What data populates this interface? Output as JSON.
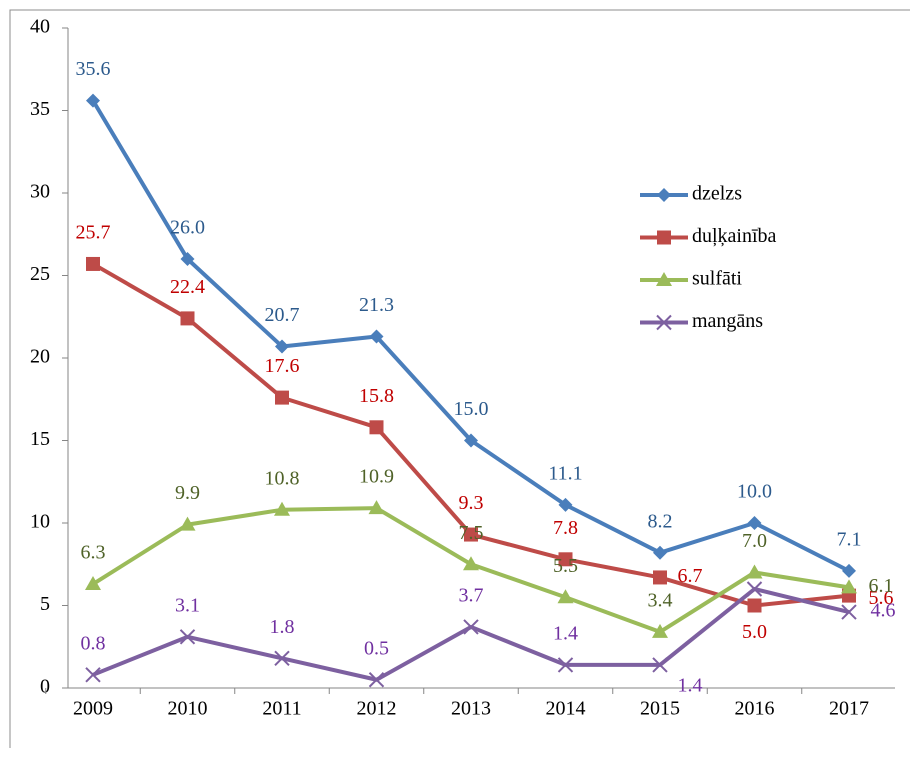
{
  "chart_data": {
    "type": "line",
    "categories": [
      "2009",
      "2010",
      "2011",
      "2012",
      "2013",
      "2014",
      "2015",
      "2016",
      "2017"
    ],
    "series": [
      {
        "name": "dzelzs",
        "color": "#4a7ebb",
        "label_color": "#2c5a8c",
        "marker": "diamond",
        "values": [
          35.6,
          26.0,
          20.7,
          21.3,
          15.0,
          11.1,
          8.2,
          10.0,
          7.1
        ],
        "value_labels": [
          "35.6",
          "26.0",
          "20.7",
          "21.3",
          "15.0",
          "11.1",
          "8.2",
          "10.0",
          "7.1"
        ]
      },
      {
        "name": "duļķainība",
        "color": "#be4b48",
        "label_color": "#c00000",
        "marker": "square",
        "values": [
          25.7,
          22.4,
          17.6,
          15.8,
          9.3,
          7.8,
          6.7,
          5.0,
          5.6
        ],
        "value_labels": [
          "25.7",
          "22.4",
          "17.6",
          "15.8",
          "9.3",
          "7.8",
          "6.7",
          "5.0",
          "5.6"
        ]
      },
      {
        "name": "sulfāti",
        "color": "#9bbb59",
        "label_color": "#4f6228",
        "marker": "triangle",
        "values": [
          6.3,
          9.9,
          10.8,
          10.9,
          7.5,
          5.5,
          3.4,
          7.0,
          6.1
        ],
        "value_labels": [
          "6.3",
          "9.9",
          "10.8",
          "10.9",
          "7.5",
          "5.5",
          "3.4",
          "7.0",
          "6.1"
        ]
      },
      {
        "name": "mangāns",
        "color": "#7d60a0",
        "label_color": "#7030a0",
        "marker": "x",
        "values": [
          0.8,
          3.1,
          1.8,
          0.5,
          3.7,
          1.4,
          1.4,
          6.0,
          4.6
        ],
        "value_labels": [
          "0.8",
          "3.1",
          "1.8",
          "0.5",
          "3.7",
          "1.4",
          "1.4",
          null,
          "4.6"
        ]
      }
    ],
    "ylim": [
      0,
      40
    ],
    "yticks": [
      0,
      5,
      10,
      15,
      20,
      25,
      30,
      35,
      40
    ],
    "legend": "right"
  }
}
